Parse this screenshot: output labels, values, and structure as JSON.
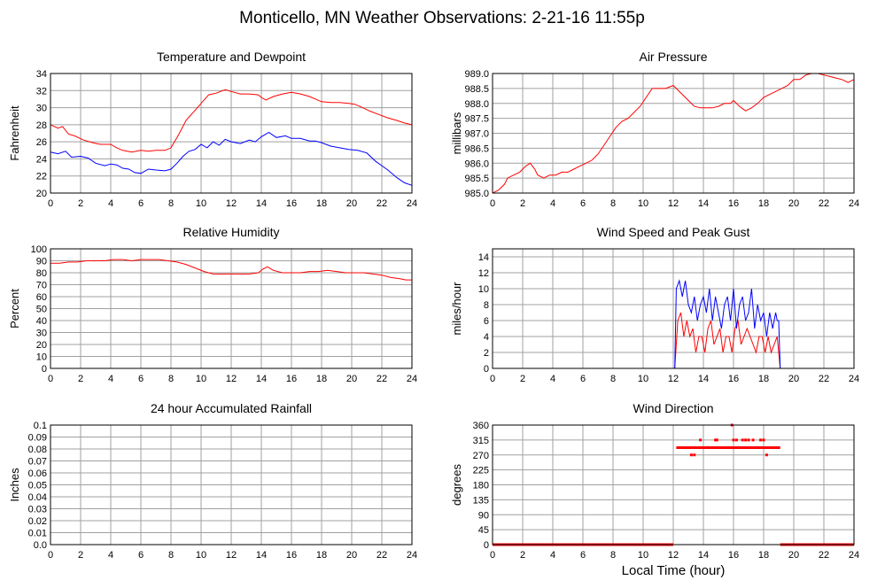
{
  "title": "Monticello, MN Weather Observations: 2-21-16 11:55p",
  "xlabel": "Local Time (hour)",
  "colors": {
    "red": "#ff0000",
    "blue": "#0000ff",
    "grid": "#a0a0a0",
    "frame": "#000000"
  },
  "chart_data": [
    {
      "id": "temp",
      "type": "line",
      "title": "Temperature and Dewpoint",
      "ylabel": "Fahrenheit",
      "xlim": [
        0,
        24
      ],
      "ylim": [
        20,
        34
      ],
      "xticks": [
        "0",
        "2",
        "4",
        "6",
        "8",
        "10",
        "12",
        "14",
        "16",
        "18",
        "20",
        "22",
        "24"
      ],
      "yticks": [
        "20",
        "22",
        "24",
        "26",
        "28",
        "30",
        "32",
        "34"
      ],
      "series": [
        {
          "color": "red",
          "x": [
            0,
            0.5,
            0.8,
            1.2,
            1.6,
            2.2,
            2.8,
            3.3,
            4.0,
            4.4,
            4.8,
            5.4,
            6.0,
            6.5,
            7.0,
            7.6,
            8.0,
            8.5,
            9.0,
            9.5,
            10.0,
            10.5,
            11.0,
            11.6,
            12.0,
            12.6,
            13.2,
            13.8,
            14.0,
            14.3,
            14.8,
            15.4,
            16.0,
            16.6,
            17.2,
            17.6,
            18.0,
            18.6,
            19.2,
            19.8,
            20.2,
            20.6,
            21.2,
            21.8,
            22.4,
            23.0,
            23.5,
            24.0
          ],
          "y": [
            28.0,
            27.6,
            27.8,
            26.9,
            26.7,
            26.2,
            25.9,
            25.7,
            25.7,
            25.3,
            25.0,
            24.8,
            25.0,
            24.9,
            25.0,
            25.0,
            25.3,
            26.8,
            28.5,
            29.5,
            30.5,
            31.5,
            31.7,
            32.1,
            31.9,
            31.6,
            31.6,
            31.5,
            31.2,
            30.9,
            31.3,
            31.6,
            31.8,
            31.6,
            31.3,
            31.0,
            30.7,
            30.6,
            30.6,
            30.5,
            30.4,
            30.1,
            29.6,
            29.2,
            28.8,
            28.5,
            28.2,
            28.0
          ]
        },
        {
          "color": "blue",
          "x": [
            0,
            0.5,
            1.0,
            1.4,
            2.0,
            2.5,
            3.0,
            3.6,
            4.0,
            4.4,
            4.8,
            5.2,
            5.6,
            6.0,
            6.5,
            7.0,
            7.6,
            8.0,
            8.4,
            8.8,
            9.2,
            9.6,
            10.0,
            10.4,
            10.8,
            11.2,
            11.6,
            12.0,
            12.6,
            13.2,
            13.6,
            14.0,
            14.5,
            15.0,
            15.6,
            16.0,
            16.6,
            17.2,
            17.6,
            18.0,
            18.6,
            19.2,
            19.8,
            20.4,
            21.0,
            21.6,
            22.0,
            22.4,
            23.0,
            23.5,
            24.0
          ],
          "y": [
            24.8,
            24.6,
            24.9,
            24.2,
            24.3,
            24.1,
            23.5,
            23.2,
            23.4,
            23.3,
            22.9,
            22.8,
            22.4,
            22.3,
            22.8,
            22.7,
            22.6,
            22.8,
            23.5,
            24.3,
            24.9,
            25.1,
            25.7,
            25.3,
            26.0,
            25.6,
            26.3,
            26.0,
            25.8,
            26.2,
            26.0,
            26.6,
            27.1,
            26.5,
            26.7,
            26.4,
            26.4,
            26.1,
            26.1,
            25.9,
            25.5,
            25.3,
            25.1,
            25.0,
            24.7,
            23.7,
            23.2,
            22.7,
            21.8,
            21.2,
            20.9
          ]
        }
      ]
    },
    {
      "id": "pressure",
      "type": "line",
      "title": "Air Pressure",
      "ylabel": "millibars",
      "xlim": [
        0,
        24
      ],
      "ylim": [
        985,
        989
      ],
      "xticks": [
        "0",
        "2",
        "4",
        "6",
        "8",
        "10",
        "12",
        "14",
        "16",
        "18",
        "20",
        "22",
        "24"
      ],
      "yticks": [
        "985.0",
        "985.5",
        "986.0",
        "986.5",
        "987.0",
        "987.5",
        "988.0",
        "988.5",
        "989.0"
      ],
      "series": [
        {
          "color": "red",
          "x": [
            0,
            0.2,
            0.4,
            0.8,
            1.0,
            1.4,
            1.8,
            2.2,
            2.5,
            2.8,
            3.0,
            3.4,
            3.8,
            4.2,
            4.6,
            5.0,
            5.4,
            5.8,
            6.2,
            6.6,
            7.0,
            7.4,
            7.8,
            8.2,
            8.6,
            9.0,
            9.4,
            9.8,
            10.2,
            10.6,
            11.0,
            11.5,
            12.0,
            12.2,
            12.6,
            13.0,
            13.4,
            13.8,
            14.2,
            14.6,
            15.0,
            15.4,
            15.8,
            16.0,
            16.4,
            16.8,
            17.2,
            17.6,
            18.0,
            18.4,
            18.8,
            19.2,
            19.6,
            20.0,
            20.4,
            20.8,
            21.2,
            21.6,
            22.0,
            22.4,
            22.8,
            23.2,
            23.6,
            24.0
          ],
          "y": [
            985.0,
            985.05,
            985.1,
            985.3,
            985.5,
            985.6,
            985.7,
            985.9,
            986.0,
            985.8,
            985.6,
            985.5,
            985.6,
            985.6,
            985.7,
            985.7,
            985.8,
            985.9,
            986.0,
            986.1,
            986.3,
            986.6,
            986.9,
            987.2,
            987.4,
            987.5,
            987.7,
            987.9,
            988.2,
            988.5,
            988.5,
            988.5,
            988.6,
            988.5,
            988.3,
            988.1,
            987.9,
            987.85,
            987.85,
            987.85,
            987.9,
            988.0,
            988.0,
            988.1,
            987.9,
            987.75,
            987.85,
            988.0,
            988.2,
            988.3,
            988.4,
            988.5,
            988.6,
            988.8,
            988.8,
            988.95,
            989.0,
            989.0,
            988.95,
            988.9,
            988.85,
            988.8,
            988.7,
            988.8
          ]
        }
      ]
    },
    {
      "id": "humidity",
      "type": "line",
      "title": "Relative Humidity",
      "ylabel": "Percent",
      "xlim": [
        0,
        24
      ],
      "ylim": [
        0,
        100
      ],
      "xticks": [
        "0",
        "2",
        "4",
        "6",
        "8",
        "10",
        "12",
        "14",
        "16",
        "18",
        "20",
        "22",
        "24"
      ],
      "yticks": [
        "0",
        "10",
        "20",
        "30",
        "40",
        "50",
        "60",
        "70",
        "80",
        "90",
        "100"
      ],
      "series": [
        {
          "color": "red",
          "x": [
            0,
            0.6,
            1.2,
            1.8,
            2.4,
            3.0,
            3.6,
            4.2,
            4.8,
            5.4,
            6.0,
            6.6,
            7.2,
            7.8,
            8.4,
            9.0,
            9.6,
            10.2,
            10.8,
            11.4,
            12.0,
            12.6,
            13.2,
            13.8,
            14.1,
            14.4,
            14.8,
            15.4,
            16.0,
            16.6,
            17.2,
            17.8,
            18.4,
            19.0,
            19.6,
            20.2,
            20.8,
            21.4,
            22.0,
            22.6,
            23.2,
            23.6,
            24.0
          ],
          "y": [
            88,
            88,
            89,
            89,
            90,
            90,
            90,
            91,
            91,
            90,
            91,
            91,
            91,
            90,
            89,
            87,
            84,
            81,
            79,
            79,
            79,
            79,
            79,
            80,
            83,
            85,
            82,
            80,
            80,
            80,
            81,
            81,
            82,
            81,
            80,
            80,
            80,
            79,
            78,
            76,
            75,
            74,
            74
          ]
        }
      ]
    },
    {
      "id": "wind",
      "type": "line",
      "title": "Wind Speed and Peak Gust",
      "ylabel": "miles/hour",
      "xlim": [
        0,
        24
      ],
      "ylim": [
        0,
        15
      ],
      "xticks": [
        "0",
        "2",
        "4",
        "6",
        "8",
        "10",
        "12",
        "14",
        "16",
        "18",
        "20",
        "22",
        "24"
      ],
      "yticks": [
        "0",
        "2",
        "4",
        "6",
        "8",
        "10",
        "12",
        "14"
      ],
      "series": [
        {
          "color": "red",
          "x": [
            0,
            12.1,
            12.3,
            12.5,
            12.7,
            12.9,
            13.1,
            13.3,
            13.5,
            13.7,
            13.9,
            14.1,
            14.3,
            14.5,
            14.7,
            14.9,
            15.1,
            15.3,
            15.5,
            15.7,
            15.9,
            16.1,
            16.3,
            16.5,
            16.7,
            16.9,
            17.1,
            17.3,
            17.5,
            17.7,
            17.9,
            18.1,
            18.3,
            18.5,
            18.7,
            18.9,
            19.0,
            19.1,
            24
          ],
          "y": [
            0,
            0,
            6,
            7,
            4,
            6,
            4,
            5,
            2,
            4,
            4,
            2,
            5,
            6,
            3,
            4,
            5,
            2,
            4,
            4,
            2,
            5,
            6,
            3,
            4,
            5,
            4,
            3,
            2,
            4,
            4,
            2,
            4,
            2,
            3,
            4,
            2,
            0,
            0
          ]
        },
        {
          "color": "blue",
          "x": [
            0,
            12.1,
            12.2,
            12.4,
            12.6,
            12.8,
            13.0,
            13.2,
            13.4,
            13.6,
            13.8,
            14.0,
            14.2,
            14.4,
            14.6,
            14.8,
            15.0,
            15.2,
            15.4,
            15.6,
            15.8,
            16.0,
            16.2,
            16.4,
            16.6,
            16.8,
            17.0,
            17.2,
            17.4,
            17.6,
            17.8,
            18.0,
            18.2,
            18.4,
            18.6,
            18.8,
            18.9,
            19.0,
            19.1,
            24
          ],
          "y": [
            0,
            0,
            10,
            11,
            9,
            11,
            8,
            7,
            9,
            6,
            8,
            9,
            7,
            10,
            6,
            9,
            7,
            5,
            8,
            9,
            6,
            10,
            5,
            8,
            9,
            6,
            7,
            10,
            5,
            8,
            6,
            7,
            4,
            7,
            5,
            7,
            6,
            6,
            0,
            0
          ]
        }
      ]
    },
    {
      "id": "rain",
      "type": "line",
      "title": "24 hour Accumulated Rainfall",
      "ylabel": "Inches",
      "xlim": [
        0,
        24
      ],
      "ylim": [
        0,
        0.1
      ],
      "xticks": [
        "0",
        "2",
        "4",
        "6",
        "8",
        "10",
        "12",
        "14",
        "16",
        "18",
        "20",
        "22",
        "24"
      ],
      "yticks": [
        "0.0",
        "0.01",
        "0.02",
        "0.03",
        "0.04",
        "0.05",
        "0.06",
        "0.07",
        "0.08",
        "0.09",
        "0.1"
      ],
      "series": [
        {
          "color": "red",
          "x": [
            0,
            24
          ],
          "y": [
            0,
            0
          ]
        }
      ]
    },
    {
      "id": "direction",
      "type": "scatter",
      "title": "Wind Direction",
      "ylabel": "degrees",
      "xlim": [
        0,
        24
      ],
      "ylim": [
        0,
        360
      ],
      "xticks": [
        "0",
        "2",
        "4",
        "6",
        "8",
        "10",
        "12",
        "14",
        "16",
        "18",
        "20",
        "22",
        "24"
      ],
      "yticks": [
        "0",
        "45",
        "90",
        "135",
        "180",
        "225",
        "270",
        "315",
        "360"
      ],
      "series": [
        {
          "color": "red",
          "segments": [
            {
              "x0": 0,
              "x1": 12.0,
              "y": 0
            },
            {
              "x0": 12.2,
              "x1": 19.1,
              "y": 292
            },
            {
              "x0": 19.1,
              "x1": 24,
              "y": 0
            }
          ],
          "points": {
            "x": [
              13.2,
              13.4,
              13.8,
              14.8,
              14.9,
              15.9,
              16.0,
              16.2,
              16.6,
              17.0,
              17.3,
              17.8,
              18.0,
              18.2,
              18.3,
              15.2,
              16.8
            ],
            "y": [
              270,
              270,
              315,
              315,
              315,
              360,
              315,
              315,
              315,
              315,
              315,
              315,
              315,
              270,
              292,
              292,
              315
            ]
          }
        }
      ]
    }
  ]
}
